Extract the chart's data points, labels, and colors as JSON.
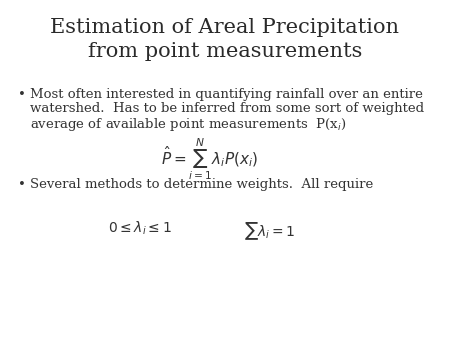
{
  "background_color": "#ffffff",
  "title_line1": "Estimation of Areal Precipitation",
  "title_line2": "from point measurements",
  "title_fontsize": 15,
  "title_color": "#2a2a2a",
  "bullet1_line1": "Most often interested in quantifying rainfall over an entire",
  "bullet1_line2": "watershed.  Has to be inferred from some sort of weighted",
  "bullet1_line3": "average of available point measurements  P(x$_i$)",
  "formula1": "$\\hat{P} = \\sum_{i=1}^{N} \\lambda_i P(x_i)$",
  "bullet2_text": "Several methods to determine weights.  All require",
  "formula2_left": "$0 \\leq \\lambda_i \\leq 1$",
  "formula2_right": "$\\sum \\lambda_i = 1$",
  "body_fontsize": 9.5,
  "formula_fontsize": 10,
  "body_color": "#333333",
  "bullet_char": "•"
}
